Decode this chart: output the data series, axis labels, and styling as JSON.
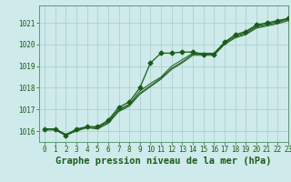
{
  "title": "Graphe pression niveau de la mer (hPa)",
  "background_color": "#ceeaea",
  "grid_color": "#b0d0d0",
  "line_color": "#1a5c1a",
  "xlim": [
    -0.5,
    23
  ],
  "ylim": [
    1015.5,
    1021.8
  ],
  "yticks": [
    1016,
    1017,
    1018,
    1019,
    1020,
    1021
  ],
  "xticks": [
    0,
    1,
    2,
    3,
    4,
    5,
    6,
    7,
    8,
    9,
    10,
    11,
    12,
    13,
    14,
    15,
    16,
    17,
    18,
    19,
    20,
    21,
    22,
    23
  ],
  "series": [
    [
      1016.1,
      1016.1,
      1015.8,
      1016.1,
      1016.2,
      1016.2,
      1016.5,
      1017.1,
      1017.35,
      1018.0,
      1019.15,
      1019.6,
      1019.6,
      1019.65,
      1019.65,
      1019.55,
      1019.55,
      1020.1,
      1020.45,
      1020.6,
      1020.9,
      1021.0,
      1021.1,
      1021.2
    ],
    [
      1016.1,
      1016.1,
      1015.85,
      1016.05,
      1016.2,
      1016.2,
      1016.45,
      1017.0,
      1017.25,
      1017.85,
      1018.2,
      1018.5,
      1019.0,
      1019.3,
      1019.6,
      1019.6,
      1019.6,
      1020.1,
      1020.4,
      1020.55,
      1020.85,
      1020.95,
      1021.05,
      1021.2
    ],
    [
      1016.1,
      1016.1,
      1015.85,
      1016.05,
      1016.2,
      1016.15,
      1016.4,
      1016.95,
      1017.2,
      1017.75,
      1018.1,
      1018.45,
      1018.9,
      1019.2,
      1019.55,
      1019.55,
      1019.55,
      1020.05,
      1020.35,
      1020.5,
      1020.8,
      1020.9,
      1021.0,
      1021.15
    ],
    [
      1016.05,
      1016.05,
      1015.8,
      1016.0,
      1016.15,
      1016.1,
      1016.35,
      1016.9,
      1017.15,
      1017.7,
      1018.05,
      1018.4,
      1018.85,
      1019.15,
      1019.5,
      1019.5,
      1019.5,
      1020.0,
      1020.3,
      1020.45,
      1020.75,
      1020.85,
      1020.95,
      1021.1
    ]
  ],
  "marker_series": 0,
  "marker": "D",
  "marker_size": 2.5,
  "title_fontsize": 7.5,
  "tick_fontsize": 5.5,
  "title_color": "#1a5c1a",
  "tick_color": "#1a5c1a",
  "spine_color": "#5a9a7a"
}
